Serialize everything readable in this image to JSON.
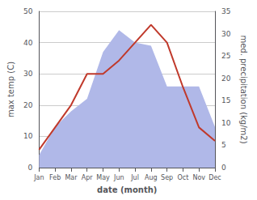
{
  "chart_data": {
    "type": "line",
    "xlabel": "date (month)",
    "ylabel": "max temp (C)",
    "y2label": "med. precipitation (kg/m2)",
    "categories": [
      "Jan",
      "Feb",
      "Mar",
      "Apr",
      "May",
      "Jun",
      "Jul",
      "Aug",
      "Sep",
      "Oct",
      "Nov",
      "Dec"
    ],
    "series": [
      {
        "type": "area",
        "color": "#b0b8e8",
        "values": [
          4,
          13,
          18,
          22,
          37,
          44,
          40,
          39,
          26,
          26,
          26,
          13
        ]
      },
      {
        "type": "line",
        "color": "#c0392b",
        "axis": "y2",
        "values": [
          4,
          9,
          14,
          21,
          21,
          24,
          28,
          32,
          28,
          18,
          9,
          6
        ]
      }
    ],
    "ylim": [
      0,
      50
    ],
    "yticks": [
      0,
      10,
      20,
      30,
      40,
      50
    ],
    "y2lim": [
      0,
      35
    ],
    "y2ticks": [
      0,
      5,
      10,
      15,
      20,
      25,
      30,
      35
    ],
    "grid": true
  }
}
